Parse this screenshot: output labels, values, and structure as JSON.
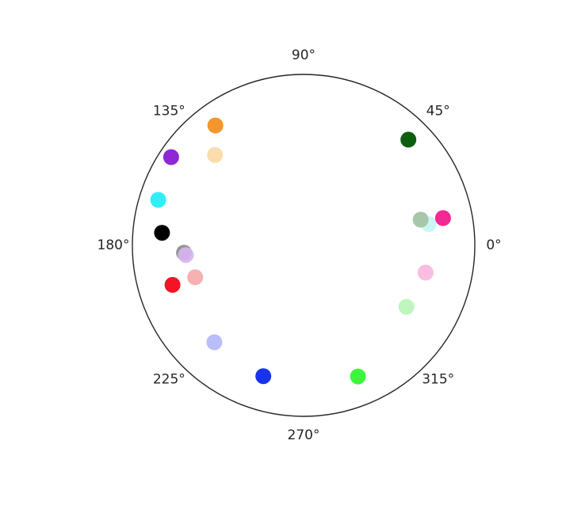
{
  "chart_data": {
    "type": "scatter",
    "projection": "polar",
    "grid": false,
    "angle_unit": "degrees",
    "rlim": [
      0,
      1
    ],
    "angular_tick_labels": [
      "0°",
      "45°",
      "90°",
      "135°",
      "180°",
      "225°",
      "270°",
      "315°"
    ],
    "angular_ticks": [
      0,
      45,
      90,
      135,
      180,
      225,
      270,
      315
    ],
    "points": [
      {
        "theta": 45.3,
        "r": 0.87,
        "color": "#0b5f0e",
        "alpha": 1.0
      },
      {
        "theta": 126.3,
        "r": 0.87,
        "color": "#f5952c",
        "alpha": 1.0
      },
      {
        "theta": 134.4,
        "r": 0.74,
        "color": "#fbdcac",
        "alpha": 1.0
      },
      {
        "theta": 146.3,
        "r": 0.93,
        "color": "#8e27d6",
        "alpha": 1.0
      },
      {
        "theta": 162.6,
        "r": 0.89,
        "color": "#31eef6",
        "alpha": 1.0
      },
      {
        "theta": 174.9,
        "r": 0.83,
        "color": "#000000",
        "alpha": 1.0
      },
      {
        "theta": 183.5,
        "r": 0.7,
        "color": "#8a8a8a",
        "alpha": 0.9
      },
      {
        "theta": 184.7,
        "r": 0.69,
        "color": "#d7b5ef",
        "alpha": 0.9
      },
      {
        "theta": 196.4,
        "r": 0.66,
        "color": "#f7b1b1",
        "alpha": 1.0
      },
      {
        "theta": 196.8,
        "r": 0.8,
        "color": "#f51326",
        "alpha": 1.0
      },
      {
        "theta": 227.4,
        "r": 0.77,
        "color": "#b9bdfc",
        "alpha": 1.0
      },
      {
        "theta": 252.9,
        "r": 0.8,
        "color": "#1733ee",
        "alpha": 1.0
      },
      {
        "theta": 292.5,
        "r": 0.83,
        "color": "#3ef53e",
        "alpha": 1.0
      },
      {
        "theta": 329.1,
        "r": 0.7,
        "color": "#bff5bf",
        "alpha": 1.0
      },
      {
        "theta": 347.4,
        "r": 0.73,
        "color": "#f9bddf",
        "alpha": 1.0
      },
      {
        "theta": 9.7,
        "r": 0.74,
        "color": "#c9f7f5",
        "alpha": 1.0
      },
      {
        "theta": 12.4,
        "r": 0.7,
        "color": "#a8c7a8",
        "alpha": 1.0
      },
      {
        "theta": 11.1,
        "r": 0.83,
        "color": "#f32a94",
        "alpha": 1.0
      }
    ]
  }
}
